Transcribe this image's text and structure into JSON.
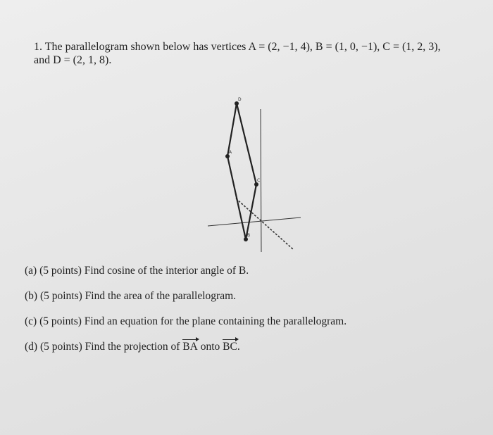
{
  "problem": {
    "number": "1.",
    "line1": "The parallelogram shown below has vertices A = (2, −1, 4), B = (1, 0, −1), C = (1, 2, 3),",
    "line2": "and D = (2, 1, 8)."
  },
  "figure": {
    "vertex_labels": [
      "D",
      "A",
      "C",
      "B"
    ]
  },
  "parts": [
    {
      "label": "(a)",
      "text": "(5 points) Find cosine of the interior angle of B."
    },
    {
      "label": "(b)",
      "text": "(5 points) Find the area of the parallelogram."
    },
    {
      "label": "(c)",
      "text": "(5 points) Find an equation for the plane containing the parallelogram."
    },
    {
      "label": "(d)",
      "text": "(5 points) Find the projection of",
      "vector1": "BA",
      "middle": "onto",
      "vector2": "BC",
      "end": "."
    }
  ]
}
